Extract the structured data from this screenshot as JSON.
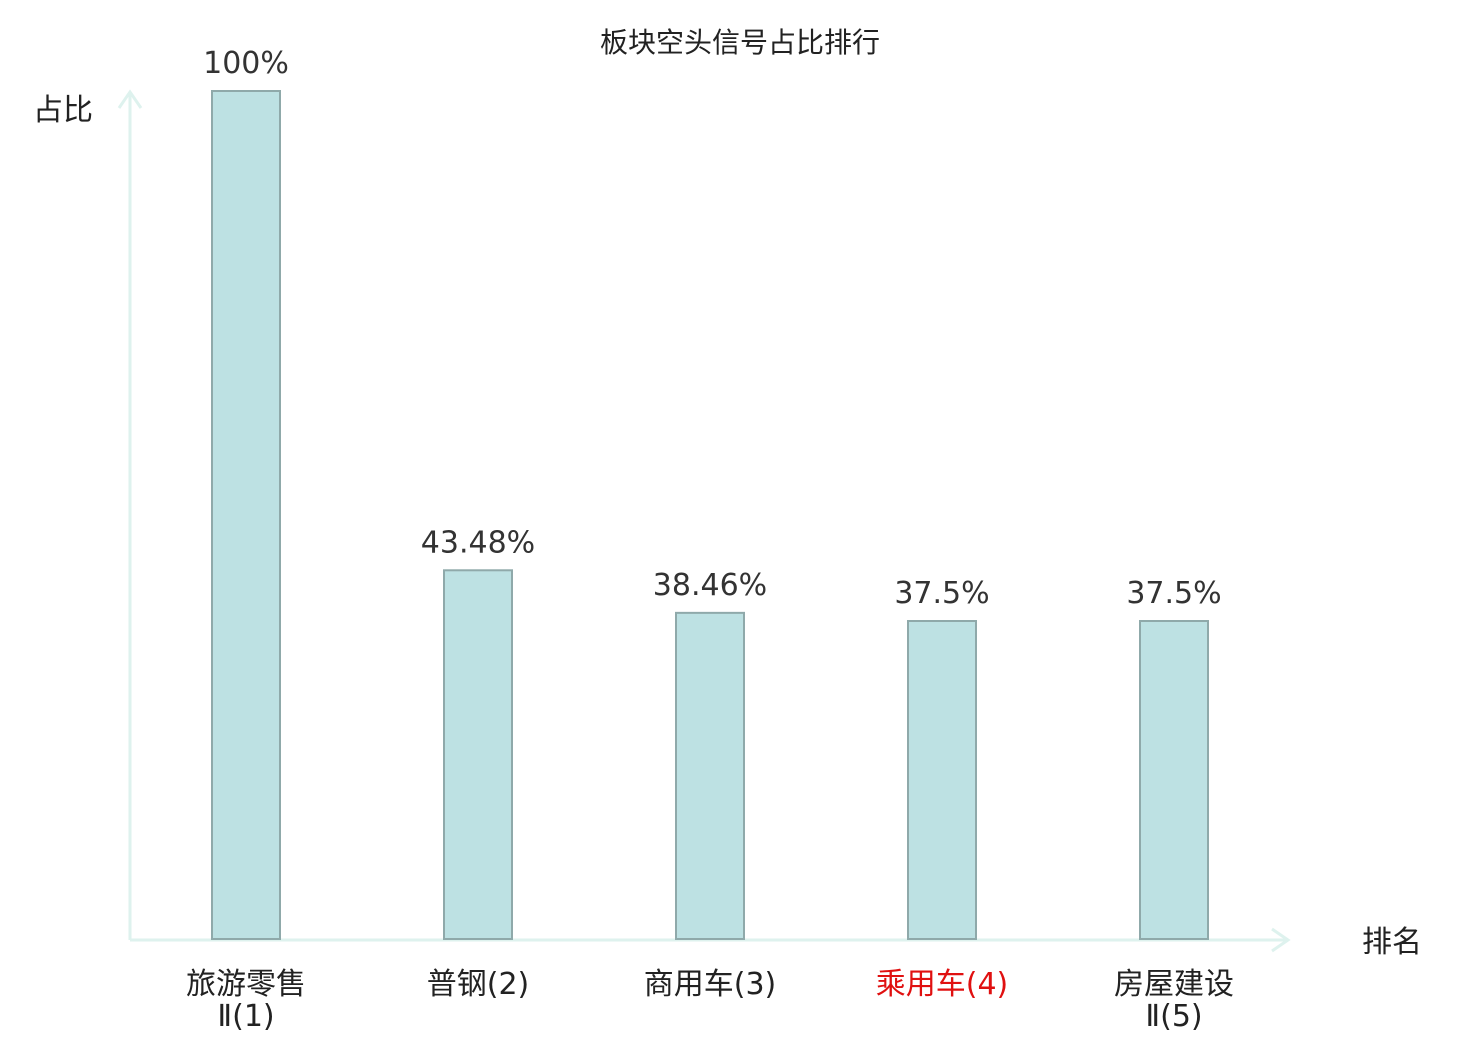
{
  "chart_data": {
    "type": "bar",
    "title": "板块空头信号占比排行",
    "ylabel": "占比",
    "xlabel": "排名",
    "ylim": [
      0,
      100
    ],
    "grid": false,
    "categories": [
      [
        "旅游零售",
        "Ⅱ(1)"
      ],
      [
        "普钢(2)"
      ],
      [
        "商用车(3)"
      ],
      [
        "乘用车(4)"
      ],
      [
        "房屋建设",
        "Ⅱ(5)"
      ]
    ],
    "values": [
      100,
      43.48,
      38.46,
      37.5,
      37.5
    ],
    "value_labels": [
      "100%",
      "43.48%",
      "38.46%",
      "37.5%",
      "37.5%"
    ],
    "highlight_index": 3
  },
  "colors": {
    "bar_fill": "#bde1e3",
    "bar_stroke": "#8fa9aa",
    "axis": "#def2ee",
    "text": "#222222",
    "value_text": "#333333",
    "highlight_text": "#e01010"
  }
}
